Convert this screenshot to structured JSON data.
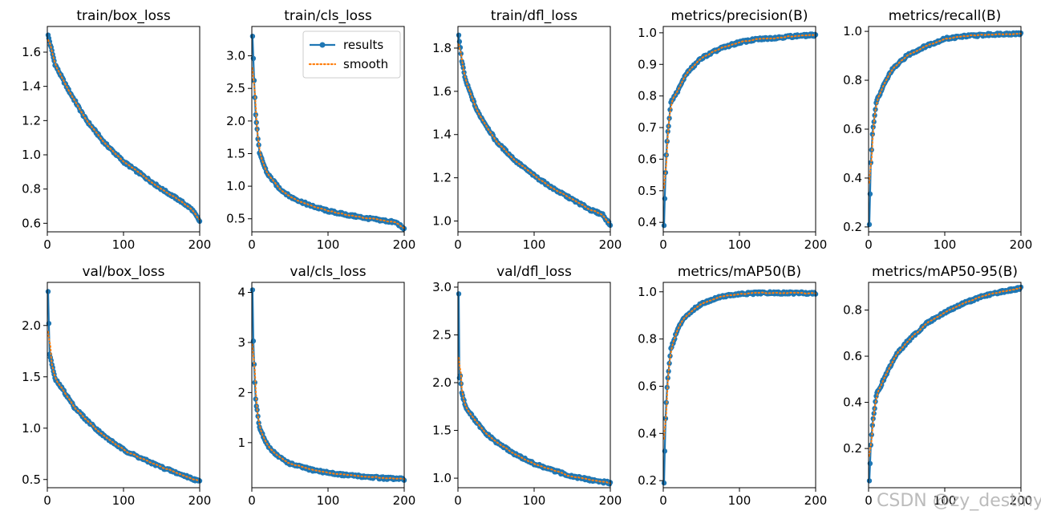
{
  "colors": {
    "results": "#1f77b4",
    "smooth": "#ff7f0e",
    "frame": "#000000",
    "watermark": "#b0b0b0"
  },
  "legend": {
    "results_label": "results",
    "smooth_label": "smooth",
    "placement": "top-right"
  },
  "watermark": "CSDN @zy_destiny",
  "chart_data": [
    {
      "type": "line",
      "title": "train/box_loss",
      "xlim": [
        0,
        200
      ],
      "ylim": [
        0.55,
        1.75
      ],
      "xticks": [
        0,
        100,
        200
      ],
      "yticks": [
        0.6,
        0.8,
        1.0,
        1.2,
        1.4,
        1.6
      ],
      "series": [
        {
          "name": "results",
          "x": [
            1,
            10,
            25,
            50,
            75,
            100,
            125,
            150,
            175,
            190,
            200
          ],
          "values": [
            1.7,
            1.53,
            1.4,
            1.21,
            1.07,
            0.96,
            0.88,
            0.8,
            0.73,
            0.68,
            0.61
          ]
        }
      ]
    },
    {
      "type": "line",
      "title": "train/cls_loss",
      "xlim": [
        0,
        200
      ],
      "ylim": [
        0.3,
        3.45
      ],
      "xticks": [
        0,
        100,
        200
      ],
      "yticks": [
        0.5,
        1.0,
        1.5,
        2.0,
        2.5,
        3.0
      ],
      "legend": true,
      "series": [
        {
          "name": "results",
          "x": [
            1,
            3,
            5,
            10,
            20,
            35,
            50,
            75,
            100,
            125,
            150,
            175,
            190,
            200
          ],
          "values": [
            3.3,
            2.62,
            2.1,
            1.5,
            1.2,
            0.98,
            0.84,
            0.71,
            0.62,
            0.56,
            0.51,
            0.47,
            0.44,
            0.34
          ]
        }
      ]
    },
    {
      "type": "line",
      "title": "train/dfl_loss",
      "xlim": [
        0,
        200
      ],
      "ylim": [
        0.95,
        1.9
      ],
      "xticks": [
        0,
        100,
        200
      ],
      "yticks": [
        1.0,
        1.2,
        1.4,
        1.6,
        1.8
      ],
      "series": [
        {
          "name": "results",
          "x": [
            1,
            5,
            10,
            25,
            50,
            75,
            100,
            125,
            150,
            175,
            190,
            200
          ],
          "values": [
            1.86,
            1.74,
            1.65,
            1.51,
            1.37,
            1.28,
            1.21,
            1.15,
            1.1,
            1.05,
            1.03,
            0.98
          ]
        }
      ]
    },
    {
      "type": "line",
      "title": "metrics/precision(B)",
      "xlim": [
        0,
        200
      ],
      "ylim": [
        0.37,
        1.02
      ],
      "xticks": [
        0,
        100,
        200
      ],
      "yticks": [
        0.4,
        0.5,
        0.6,
        0.7,
        0.8,
        0.9,
        1.0
      ],
      "series": [
        {
          "name": "results",
          "x": [
            1,
            3,
            5,
            10,
            20,
            30,
            50,
            75,
            100,
            125,
            150,
            175,
            200
          ],
          "values": [
            0.39,
            0.56,
            0.66,
            0.78,
            0.82,
            0.87,
            0.92,
            0.95,
            0.97,
            0.98,
            0.985,
            0.99,
            0.993
          ]
        }
      ]
    },
    {
      "type": "line",
      "title": "metrics/recall(B)",
      "xlim": [
        0,
        200
      ],
      "ylim": [
        0.18,
        1.02
      ],
      "xticks": [
        0,
        100,
        200
      ],
      "yticks": [
        0.2,
        0.4,
        0.6,
        0.8,
        1.0
      ],
      "series": [
        {
          "name": "results",
          "x": [
            1,
            3,
            5,
            10,
            20,
            30,
            50,
            75,
            100,
            125,
            150,
            175,
            200
          ],
          "values": [
            0.21,
            0.46,
            0.58,
            0.71,
            0.78,
            0.84,
            0.9,
            0.94,
            0.97,
            0.98,
            0.985,
            0.99,
            0.99
          ]
        }
      ]
    },
    {
      "type": "line",
      "title": "val/box_loss",
      "xlim": [
        0,
        200
      ],
      "ylim": [
        0.42,
        2.42
      ],
      "xticks": [
        0,
        100,
        200
      ],
      "yticks": [
        0.5,
        1.0,
        1.5,
        2.0
      ],
      "series": [
        {
          "name": "results",
          "x": [
            1,
            3,
            5,
            10,
            20,
            35,
            50,
            75,
            100,
            125,
            150,
            175,
            190,
            200
          ],
          "values": [
            2.33,
            1.71,
            1.66,
            1.48,
            1.38,
            1.21,
            1.09,
            0.92,
            0.79,
            0.7,
            0.62,
            0.55,
            0.51,
            0.48
          ]
        }
      ]
    },
    {
      "type": "line",
      "title": "val/cls_loss",
      "xlim": [
        0,
        200
      ],
      "ylim": [
        0.1,
        4.2
      ],
      "xticks": [
        0,
        100,
        200
      ],
      "yticks": [
        1,
        2,
        3,
        4
      ],
      "series": [
        {
          "name": "results",
          "x": [
            1,
            2,
            3,
            5,
            10,
            20,
            35,
            50,
            75,
            100,
            125,
            150,
            175,
            200
          ],
          "values": [
            4.05,
            3.03,
            2.58,
            1.85,
            1.3,
            0.95,
            0.72,
            0.58,
            0.47,
            0.4,
            0.35,
            0.32,
            0.29,
            0.27
          ]
        }
      ]
    },
    {
      "type": "line",
      "title": "val/dfl_loss",
      "xlim": [
        0,
        200
      ],
      "ylim": [
        0.9,
        3.05
      ],
      "xticks": [
        0,
        100,
        200
      ],
      "yticks": [
        1.0,
        1.5,
        2.0,
        2.5,
        3.0
      ],
      "series": [
        {
          "name": "results",
          "x": [
            1,
            2,
            3,
            5,
            10,
            20,
            35,
            50,
            75,
            100,
            125,
            150,
            175,
            200
          ],
          "values": [
            2.93,
            2.05,
            2.08,
            1.9,
            1.75,
            1.63,
            1.48,
            1.38,
            1.25,
            1.15,
            1.08,
            1.02,
            0.98,
            0.95
          ]
        }
      ]
    },
    {
      "type": "line",
      "title": "metrics/mAP50(B)",
      "xlim": [
        0,
        200
      ],
      "ylim": [
        0.17,
        1.04
      ],
      "xticks": [
        0,
        100,
        200
      ],
      "yticks": [
        0.2,
        0.4,
        0.6,
        0.8,
        1.0
      ],
      "series": [
        {
          "name": "results",
          "x": [
            1,
            3,
            5,
            10,
            20,
            30,
            50,
            75,
            100,
            125,
            150,
            175,
            200
          ],
          "values": [
            0.19,
            0.46,
            0.6,
            0.76,
            0.85,
            0.9,
            0.95,
            0.98,
            0.99,
            0.995,
            0.995,
            0.995,
            0.995
          ]
        }
      ]
    },
    {
      "type": "line",
      "title": "metrics/mAP50-95(B)",
      "xlim": [
        0,
        200
      ],
      "ylim": [
        0.03,
        0.92
      ],
      "xticks": [
        0,
        100,
        200
      ],
      "yticks": [
        0.2,
        0.4,
        0.6,
        0.8
      ],
      "series": [
        {
          "name": "results",
          "x": [
            1,
            3,
            5,
            10,
            20,
            35,
            50,
            75,
            100,
            125,
            150,
            175,
            200
          ],
          "values": [
            0.06,
            0.21,
            0.3,
            0.43,
            0.5,
            0.6,
            0.66,
            0.74,
            0.79,
            0.83,
            0.86,
            0.88,
            0.895
          ]
        }
      ]
    }
  ]
}
